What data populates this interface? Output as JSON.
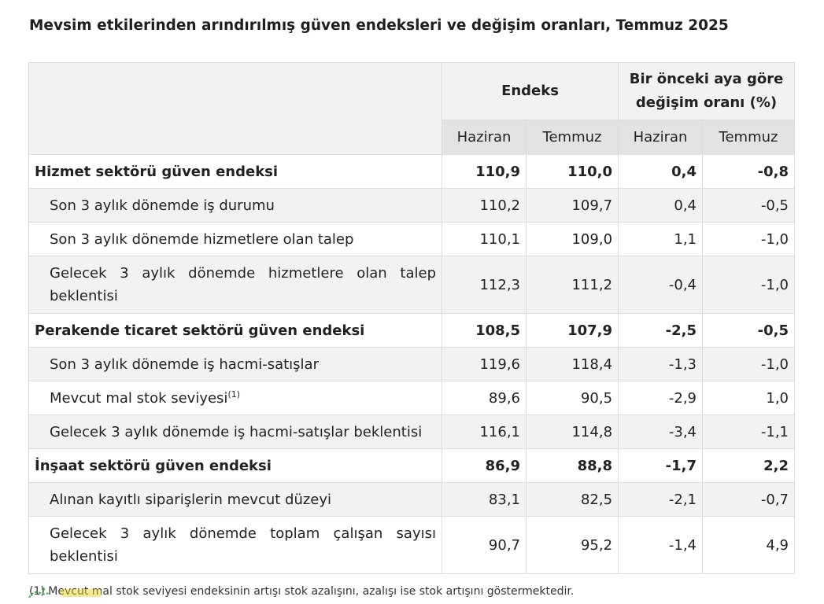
{
  "title": "Mevsim etkilerinden arındırılmış güven endeksleri ve değişim oranları, Temmuz 2025",
  "table": {
    "group_headers": {
      "index": "Endeks",
      "change": "Bir önceki aya göre değişim oranı (%)"
    },
    "sub_headers": [
      "Haziran",
      "Temmuz",
      "Haziran",
      "Temmuz"
    ],
    "rows": [
      {
        "label": "Hizmet sektörü güven endeksi",
        "values": [
          "110,9",
          "110,0",
          "0,4",
          "-0,8"
        ]
      },
      {
        "label": "Son 3 aylık dönemde iş durumu",
        "values": [
          "110,2",
          "109,7",
          "0,4",
          "-0,5"
        ]
      },
      {
        "label": "Son 3 aylık dönemde hizmetlere olan talep",
        "values": [
          "110,1",
          "109,0",
          "1,1",
          "-1,0"
        ]
      },
      {
        "label": "Gelecek 3 aylık dönemde hizmetlere olan talep beklentisi",
        "values": [
          "112,3",
          "111,2",
          "-0,4",
          "-1,0"
        ]
      },
      {
        "label": "Perakende ticaret sektörü güven endeksi",
        "values": [
          "108,5",
          "107,9",
          "-2,5",
          "-0,5"
        ]
      },
      {
        "label": "Son 3 aylık dönemde iş hacmi-satışlar",
        "values": [
          "119,6",
          "118,4",
          "-1,3",
          "-1,0"
        ]
      },
      {
        "label": "Mevcut mal stok seviyesi",
        "note_mark": "(1)",
        "values": [
          "89,6",
          "90,5",
          "-2,9",
          "1,0"
        ]
      },
      {
        "label": "Gelecek 3 aylık dönemde iş hacmi-satışlar beklentisi",
        "values": [
          "116,1",
          "114,8",
          "-3,4",
          "-1,1"
        ]
      },
      {
        "label": "İnşaat sektörü güven endeksi",
        "values": [
          "86,9",
          "88,8",
          "-1,7",
          "2,2"
        ]
      },
      {
        "label": "Alınan kayıtlı siparişlerin mevcut düzeyi",
        "values": [
          "83,1",
          "82,5",
          "-2,1",
          "-0,7"
        ]
      },
      {
        "label": "Gelecek 3 aylık dönemde toplam çalışan sayısı beklentisi",
        "values": [
          "90,7",
          "95,2",
          "-1,4",
          "4,9"
        ]
      }
    ]
  },
  "footnote": "(1) Mevcut mal stok seviyesi endeksinin artışı stok azalışını, azalışı ise stok artışını göstermektedir.",
  "colors": {
    "header_bg": "#f2f2f2",
    "subheader_bg": "#e3e3e3",
    "alt_row_bg": "#f2f2f2",
    "border": "#dcdcdc",
    "watermark_green": "#2e9e3a",
    "watermark_yellow": "#e8d21a"
  }
}
